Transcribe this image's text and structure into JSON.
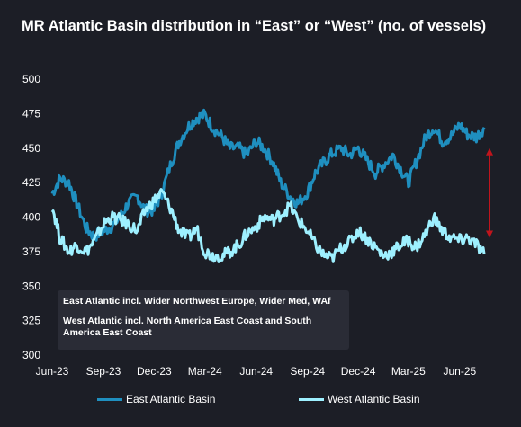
{
  "title": "MR Atlantic Basin distribution in “East” or “West” (no. of vessels)",
  "notes": {
    "line1": "East Atlantic incl. Wider Northwest Europe, Wider Med, WAf",
    "line2": "West Atlantic incl. North America East Coast and South America East Coast"
  },
  "colors": {
    "east": "#1f8fbf",
    "west": "#9ef0ff",
    "arrow": "#c0141c",
    "background": "#1c1e26"
  },
  "chart_data": {
    "type": "line",
    "x_ticks": [
      "Jun-23",
      "Sep-23",
      "Dec-23",
      "Mar-24",
      "Jun-24",
      "Sep-24",
      "Dec-24",
      "Mar-25",
      "Jun-25"
    ],
    "y_ticks": [
      "500",
      "475",
      "450",
      "425",
      "400",
      "375",
      "350",
      "325",
      "300"
    ],
    "ylim": [
      300,
      500
    ],
    "xlim": [
      "2023-06-01",
      "2025-07-31"
    ],
    "annotation": "double-headed-arrow-between-series-at-end",
    "series": [
      {
        "name": "East Atlantic Basin",
        "points": [
          [
            "2023-06-01",
            417
          ],
          [
            "2023-06-15",
            428
          ],
          [
            "2023-07-01",
            425
          ],
          [
            "2023-07-15",
            410
          ],
          [
            "2023-08-01",
            392
          ],
          [
            "2023-08-15",
            386
          ],
          [
            "2023-09-01",
            390
          ],
          [
            "2023-09-15",
            393
          ],
          [
            "2023-10-01",
            400
          ],
          [
            "2023-10-15",
            410
          ],
          [
            "2023-11-01",
            415
          ],
          [
            "2023-11-15",
            405
          ],
          [
            "2023-12-01",
            405
          ],
          [
            "2023-12-15",
            418
          ],
          [
            "2024-01-01",
            440
          ],
          [
            "2024-01-15",
            455
          ],
          [
            "2024-02-01",
            466
          ],
          [
            "2024-02-15",
            472
          ],
          [
            "2024-03-01",
            474
          ],
          [
            "2024-03-15",
            465
          ],
          [
            "2024-04-01",
            458
          ],
          [
            "2024-04-15",
            450
          ],
          [
            "2024-05-01",
            450
          ],
          [
            "2024-05-15",
            445
          ],
          [
            "2024-06-01",
            455
          ],
          [
            "2024-06-15",
            450
          ],
          [
            "2024-07-01",
            440
          ],
          [
            "2024-07-15",
            425
          ],
          [
            "2024-08-01",
            415
          ],
          [
            "2024-08-15",
            410
          ],
          [
            "2024-09-01",
            418
          ],
          [
            "2024-09-15",
            432
          ],
          [
            "2024-10-01",
            440
          ],
          [
            "2024-10-15",
            446
          ],
          [
            "2024-11-01",
            450
          ],
          [
            "2024-11-15",
            445
          ],
          [
            "2024-12-01",
            450
          ],
          [
            "2024-12-15",
            442
          ],
          [
            "2025-01-01",
            432
          ],
          [
            "2025-01-15",
            438
          ],
          [
            "2025-02-01",
            445
          ],
          [
            "2025-02-15",
            435
          ],
          [
            "2025-03-01",
            425
          ],
          [
            "2025-03-15",
            440
          ],
          [
            "2025-04-01",
            458
          ],
          [
            "2025-04-15",
            465
          ],
          [
            "2025-05-01",
            455
          ],
          [
            "2025-05-15",
            458
          ],
          [
            "2025-06-01",
            467
          ],
          [
            "2025-06-15",
            460
          ],
          [
            "2025-07-01",
            458
          ],
          [
            "2025-07-15",
            465
          ]
        ]
      },
      {
        "name": "West Atlantic Basin",
        "points": [
          [
            "2023-06-01",
            408
          ],
          [
            "2023-06-15",
            385
          ],
          [
            "2023-07-01",
            375
          ],
          [
            "2023-07-15",
            380
          ],
          [
            "2023-08-01",
            375
          ],
          [
            "2023-08-15",
            382
          ],
          [
            "2023-09-01",
            395
          ],
          [
            "2023-09-15",
            400
          ],
          [
            "2023-10-01",
            398
          ],
          [
            "2023-10-15",
            395
          ],
          [
            "2023-11-01",
            390
          ],
          [
            "2023-11-15",
            405
          ],
          [
            "2023-12-01",
            412
          ],
          [
            "2023-12-15",
            418
          ],
          [
            "2024-01-01",
            405
          ],
          [
            "2024-01-15",
            390
          ],
          [
            "2024-02-01",
            385
          ],
          [
            "2024-02-15",
            392
          ],
          [
            "2024-03-01",
            375
          ],
          [
            "2024-03-15",
            372
          ],
          [
            "2024-04-01",
            372
          ],
          [
            "2024-04-15",
            375
          ],
          [
            "2024-05-01",
            380
          ],
          [
            "2024-05-15",
            388
          ],
          [
            "2024-06-01",
            393
          ],
          [
            "2024-06-15",
            400
          ],
          [
            "2024-07-01",
            398
          ],
          [
            "2024-07-15",
            402
          ],
          [
            "2024-08-01",
            408
          ],
          [
            "2024-08-15",
            398
          ],
          [
            "2024-09-01",
            390
          ],
          [
            "2024-09-15",
            380
          ],
          [
            "2024-10-01",
            372
          ],
          [
            "2024-10-15",
            370
          ],
          [
            "2024-11-01",
            378
          ],
          [
            "2024-11-15",
            382
          ],
          [
            "2024-12-01",
            390
          ],
          [
            "2024-12-15",
            385
          ],
          [
            "2025-01-01",
            378
          ],
          [
            "2025-01-15",
            372
          ],
          [
            "2025-02-01",
            375
          ],
          [
            "2025-02-15",
            380
          ],
          [
            "2025-03-01",
            383
          ],
          [
            "2025-03-15",
            378
          ],
          [
            "2025-04-01",
            388
          ],
          [
            "2025-04-15",
            400
          ],
          [
            "2025-05-01",
            390
          ],
          [
            "2025-05-15",
            385
          ],
          [
            "2025-06-01",
            383
          ],
          [
            "2025-06-15",
            385
          ],
          [
            "2025-07-01",
            380
          ],
          [
            "2025-07-15",
            373
          ]
        ]
      }
    ],
    "legend": [
      "East Atlantic Basin",
      "West Atlantic Basin"
    ],
    "legend_position": "bottom"
  }
}
